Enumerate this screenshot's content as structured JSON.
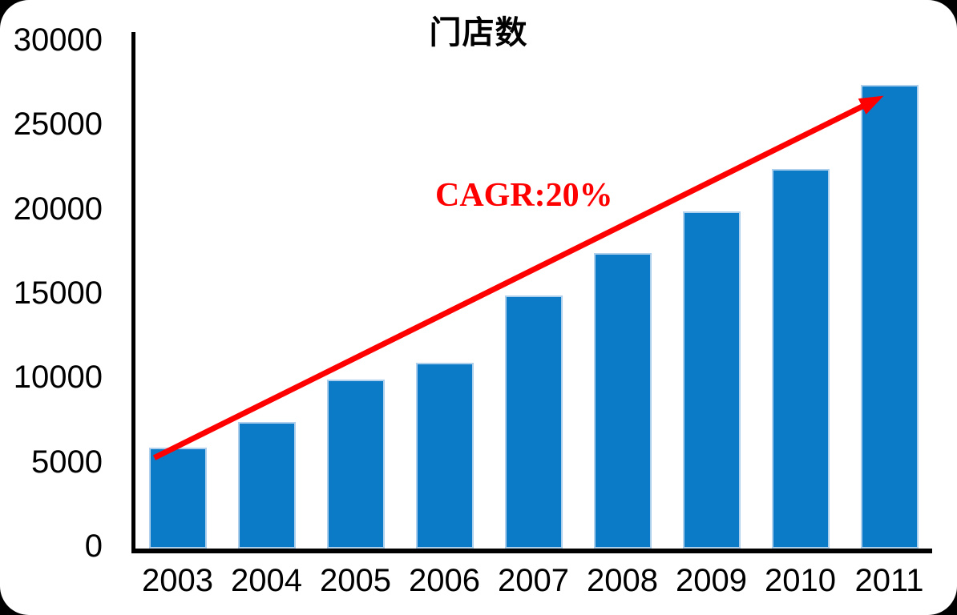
{
  "chart_data": {
    "type": "bar",
    "title": "门店数",
    "categories": [
      "2003",
      "2004",
      "2005",
      "2006",
      "2007",
      "2008",
      "2009",
      "2010",
      "2011"
    ],
    "values": [
      6000,
      7500,
      10000,
      11000,
      15000,
      17500,
      20000,
      22500,
      27500
    ],
    "xlabel": "",
    "ylabel": "",
    "ylim": [
      0,
      30000
    ],
    "ytick_step": 5000,
    "ytick_labels": [
      "0",
      "5000",
      "10000",
      "15000",
      "20000",
      "25000",
      "30000"
    ],
    "grid": "off",
    "legend": "none",
    "bar_color": "#0B7BC7",
    "bar_edge_color": "#AED0EC",
    "axis_color": "#000000",
    "annotation": {
      "text": "CAGR:20%",
      "color": "#FF0000"
    },
    "trend_arrow": {
      "from_category": "2003",
      "to_category": "2011",
      "color": "#FF0000"
    }
  }
}
